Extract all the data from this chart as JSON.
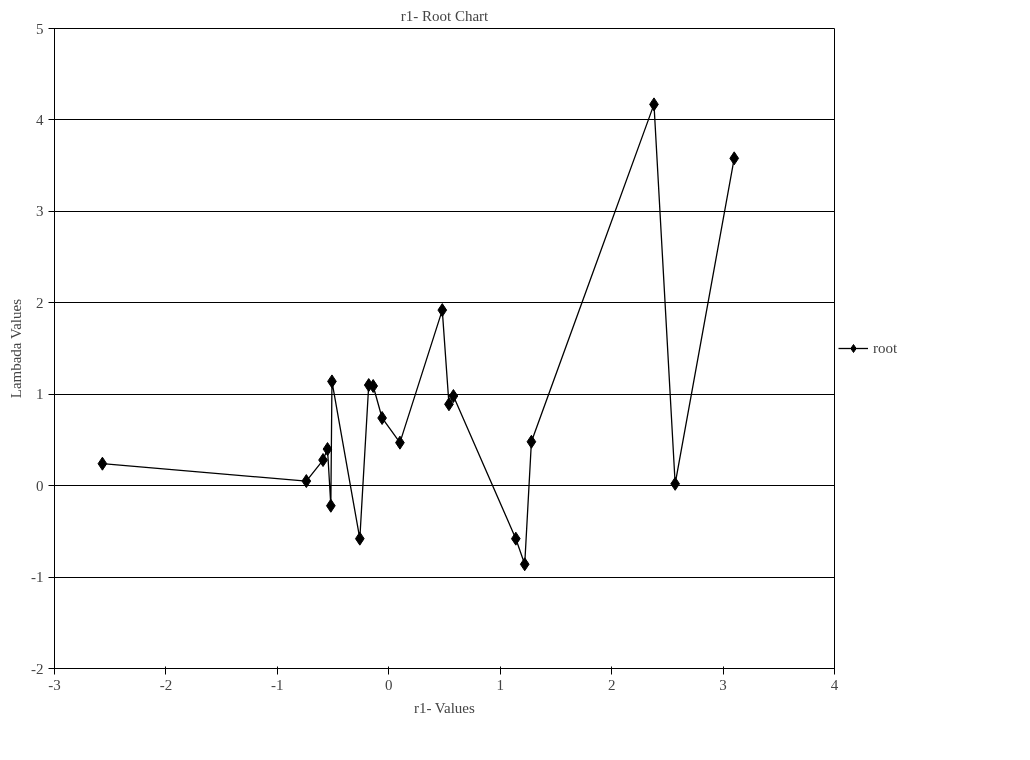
{
  "chart_data": {
    "type": "line",
    "title": "r1- Root Chart",
    "xlabel": "r1- Values",
    "ylabel": "Lambada Values",
    "x": [
      -2.57,
      -0.74,
      -0.59,
      -0.55,
      -0.52,
      -0.51,
      -0.26,
      -0.18,
      -0.14,
      -0.06,
      0.1,
      0.48,
      0.54,
      0.58,
      1.14,
      1.22,
      1.28,
      2.38,
      2.57,
      3.1
    ],
    "series": [
      {
        "name": "root",
        "color": "#000000",
        "values": [
          0.24,
          0.05,
          0.28,
          0.4,
          -0.22,
          1.14,
          -0.58,
          1.1,
          1.09,
          0.74,
          0.47,
          1.92,
          0.89,
          0.98,
          -0.58,
          -0.86,
          0.48,
          4.17,
          0.02,
          3.58
        ]
      }
    ],
    "xlim": [
      -3,
      4
    ],
    "ylim": [
      -2,
      5
    ],
    "xticks": [
      -3,
      -2,
      -1,
      0,
      1,
      2,
      3,
      4
    ],
    "yticks": [
      -2,
      -1,
      0,
      1,
      2,
      3,
      4,
      5
    ],
    "grid": "y",
    "legend": "right",
    "marker": "diamond",
    "line_style": "solid"
  }
}
